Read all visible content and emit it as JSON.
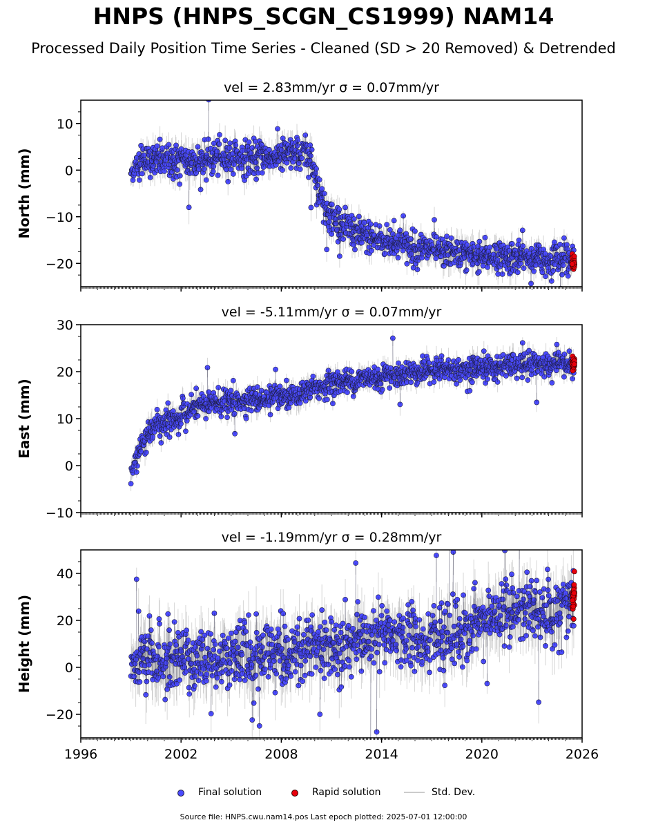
{
  "header": {
    "title": "HNPS (HNPS_SCGN_CS1999) NAM14",
    "subtitle": "Processed Daily Position Time Series - Cleaned (SD > 20 Removed) & Detrended"
  },
  "legend": {
    "final_label": "Final solution",
    "rapid_label": "Rapid solution",
    "std_label": "Std. Dev."
  },
  "footer": {
    "source_text": "Source file: HNPS.cwu.nam14.pos  Last epoch plotted: 2025-07-01 12:00:00"
  },
  "colors": {
    "final": "#4b4bff",
    "rapid": "#e8000b",
    "std": "#999999",
    "edge": "#222244"
  },
  "chart_data": [
    {
      "type": "scatter",
      "title": "vel = 2.83mm/yr   σ = 0.07mm/yr",
      "ylabel": "North (mm)",
      "xlim": [
        1996,
        2026
      ],
      "ylim": [
        -25,
        15
      ],
      "yticks": [
        10,
        0,
        -10,
        -20
      ],
      "ytick_labels": [
        "10",
        "0",
        "−10",
        "−20"
      ],
      "x_tick_labels_visible": false,
      "series": [
        {
          "x": [
            1999.0,
            1999.5,
            2000.0,
            2000.5,
            2001.0,
            2002.0,
            2003.0,
            2004.0,
            2005.0,
            2006.0,
            2007.0,
            2008.0,
            2009.0,
            2009.8,
            2010.0,
            2010.2,
            2010.5,
            2011.0,
            2012.0,
            2013.0,
            2014.0,
            2015.0,
            2016.0,
            2017.0,
            2018.0,
            2019.0,
            2020.0,
            2021.0,
            2022.0,
            2023.0,
            2024.0,
            2025.0,
            2025.5
          ],
          "values": [
            -0.5,
            1.5,
            2.0,
            2.2,
            2.0,
            1.5,
            2.0,
            2.5,
            2.8,
            2.5,
            2.8,
            3.0,
            3.2,
            3.0,
            0.0,
            -4.0,
            -7.0,
            -10.0,
            -12.5,
            -14.0,
            -15.0,
            -16.0,
            -16.8,
            -17.2,
            -17.5,
            -18.0,
            -18.3,
            -18.5,
            -18.7,
            -19.0,
            -19.0,
            -19.0,
            -19.2
          ],
          "scatter": [
            0.8,
            1.8,
            1.8,
            1.8,
            1.8,
            2.0,
            2.0,
            1.8,
            1.8,
            1.8,
            1.8,
            1.8,
            1.8,
            1.8,
            1.8,
            1.8,
            1.8,
            1.8,
            1.8,
            1.7,
            1.7,
            1.7,
            1.7,
            1.7,
            1.7,
            1.7,
            1.7,
            1.7,
            1.7,
            1.7,
            1.7,
            1.7,
            1.7
          ]
        },
        {
          "x": [
            2025.4,
            2025.5,
            2025.55
          ],
          "values": [
            -19.0,
            -20.0,
            -19.5
          ],
          "scatter": [
            0.8,
            0.8,
            0.8
          ]
        }
      ]
    },
    {
      "type": "scatter",
      "title": "vel = -5.11mm/yr   σ = 0.07mm/yr",
      "ylabel": "East (mm)",
      "xlim": [
        1996,
        2026
      ],
      "ylim": [
        -10,
        30
      ],
      "yticks": [
        30,
        20,
        10,
        0,
        -10
      ],
      "ytick_labels": [
        "30",
        "20",
        "10",
        "0",
        "−10"
      ],
      "x_tick_labels_visible": false,
      "series": [
        {
          "x": [
            1999.0,
            1999.5,
            1999.8,
            2000.0,
            2000.5,
            2001.0,
            2001.5,
            2002.0,
            2002.5,
            2003.0,
            2004.0,
            2005.0,
            2006.0,
            2007.0,
            2008.0,
            2009.0,
            2010.0,
            2011.0,
            2012.0,
            2013.0,
            2014.0,
            2015.0,
            2016.0,
            2017.0,
            2018.0,
            2019.0,
            2020.0,
            2021.0,
            2022.0,
            2023.0,
            2024.0,
            2025.0,
            2025.5
          ],
          "values": [
            -1.5,
            3.0,
            5.5,
            7.0,
            8.5,
            9.0,
            10.0,
            10.5,
            11.5,
            12.5,
            13.5,
            13.5,
            14.0,
            14.0,
            14.5,
            14.5,
            16.5,
            17.5,
            18.0,
            18.5,
            19.0,
            19.5,
            20.0,
            20.5,
            20.5,
            20.5,
            20.8,
            21.0,
            21.5,
            21.5,
            21.5,
            21.5,
            21.5
          ],
          "scatter": [
            0.8,
            1.6,
            1.5,
            1.5,
            1.5,
            1.5,
            1.5,
            1.5,
            1.5,
            1.4,
            1.4,
            1.3,
            1.3,
            1.3,
            1.3,
            1.3,
            1.3,
            1.3,
            1.3,
            1.3,
            1.3,
            1.3,
            1.3,
            1.3,
            1.3,
            1.3,
            1.3,
            1.3,
            1.3,
            1.3,
            1.3,
            1.3,
            1.3
          ]
        },
        {
          "x": [
            2025.4,
            2025.5,
            2025.55
          ],
          "values": [
            22.0,
            21.5,
            22.5
          ],
          "scatter": [
            0.7,
            0.7,
            0.7
          ]
        }
      ]
    },
    {
      "type": "scatter",
      "title": "vel = -1.19mm/yr   σ = 0.28mm/yr",
      "ylabel": "Height (mm)",
      "xlim": [
        1996,
        2026
      ],
      "ylim": [
        -30,
        50
      ],
      "yticks": [
        40,
        20,
        0,
        -20
      ],
      "ytick_labels": [
        "40",
        "20",
        "0",
        "−20"
      ],
      "xticks": [
        1996,
        2002,
        2008,
        2014,
        2020,
        2026
      ],
      "xtick_labels": [
        "1996",
        "2002",
        "2008",
        "2014",
        "2020",
        "2026"
      ],
      "x_tick_labels_visible": true,
      "series": [
        {
          "x": [
            1999.0,
            2000.0,
            2001.0,
            2002.0,
            2003.0,
            2004.0,
            2005.0,
            2006.0,
            2007.0,
            2008.0,
            2009.0,
            2010.0,
            2011.0,
            2012.0,
            2013.0,
            2014.0,
            2015.0,
            2016.0,
            2017.0,
            2018.0,
            2019.0,
            2020.0,
            2021.0,
            2022.0,
            2023.0,
            2024.0,
            2025.0,
            2025.5
          ],
          "values": [
            0.0,
            2.0,
            3.0,
            4.0,
            4.0,
            5.0,
            5.0,
            5.0,
            6.0,
            6.0,
            6.0,
            7.0,
            9.0,
            10.0,
            11.0,
            12.0,
            13.0,
            13.0,
            14.0,
            14.0,
            15.0,
            19.0,
            23.0,
            24.0,
            24.0,
            25.0,
            26.0,
            27.0
          ],
          "scatter": [
            5.5,
            7.5,
            7.5,
            7.0,
            7.0,
            7.0,
            7.0,
            7.0,
            7.0,
            7.0,
            7.0,
            7.0,
            7.0,
            7.0,
            7.0,
            7.0,
            7.0,
            7.0,
            7.0,
            7.0,
            7.0,
            7.0,
            7.0,
            7.0,
            7.0,
            7.0,
            7.0,
            7.0
          ]
        },
        {
          "x": [
            2025.4,
            2025.5,
            2025.55
          ],
          "values": [
            30.0,
            28.0,
            34.0
          ],
          "scatter": [
            3.5,
            3.5,
            3.5
          ]
        }
      ]
    }
  ]
}
